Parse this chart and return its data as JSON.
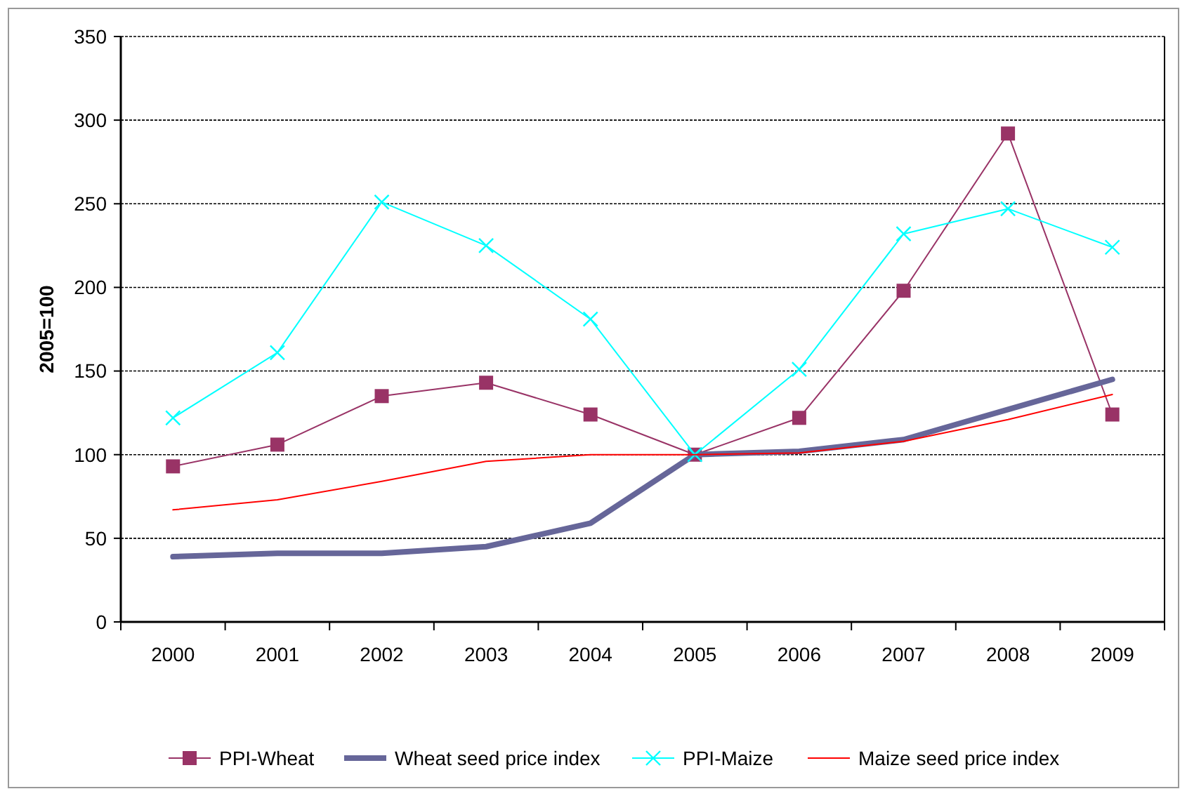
{
  "chart_data": {
    "type": "line",
    "ylabel": "2005=100",
    "categories": [
      "2000",
      "2001",
      "2002",
      "2003",
      "2004",
      "2005",
      "2006",
      "2007",
      "2008",
      "2009"
    ],
    "series": [
      {
        "name": "PPI-Wheat",
        "color": "#993366",
        "marker": "square",
        "values": [
          93,
          106,
          135,
          143,
          124,
          100,
          122,
          198,
          292,
          124
        ]
      },
      {
        "name": "Wheat seed price index",
        "color": "#666699",
        "marker": "none",
        "values": [
          39,
          41,
          41,
          45,
          59,
          100,
          102,
          109,
          127,
          145
        ]
      },
      {
        "name": "PPI-Maize",
        "color": "#00ffff",
        "marker": "cross",
        "values": [
          122,
          161,
          251,
          225,
          181,
          100,
          151,
          232,
          247,
          224
        ]
      },
      {
        "name": "Maize seed price index",
        "color": "#ff0000",
        "marker": "none",
        "values": [
          67,
          73,
          84,
          96,
          100,
          100,
          101,
          108,
          121,
          136
        ]
      }
    ],
    "ylim": [
      0,
      350
    ],
    "yticks": [
      0,
      50,
      100,
      150,
      200,
      250,
      300,
      350
    ],
    "grid": "y",
    "legend": "bottom",
    "line_style": "solid"
  }
}
